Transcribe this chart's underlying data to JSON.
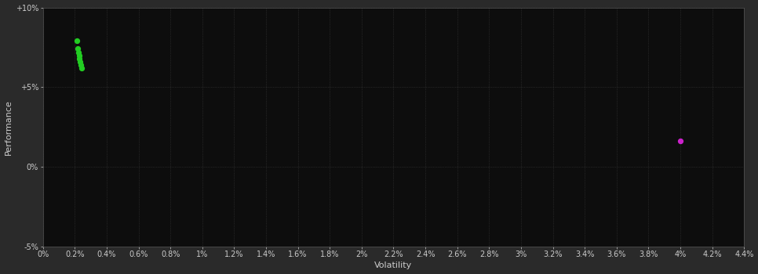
{
  "background_color": "#2a2a2a",
  "plot_bg_color": "#0d0d0d",
  "grid_color": "#3a3a3a",
  "grid_style": ":",
  "x_label": "Volatility",
  "y_label": "Performance",
  "x_min": 0.0,
  "x_max": 0.044,
  "y_min": -0.05,
  "y_max": 0.1,
  "x_ticks": [
    0.0,
    0.002,
    0.004,
    0.006,
    0.008,
    0.01,
    0.012,
    0.014,
    0.016,
    0.018,
    0.02,
    0.022,
    0.024,
    0.026,
    0.028,
    0.03,
    0.032,
    0.034,
    0.036,
    0.038,
    0.04,
    0.042,
    0.044
  ],
  "x_tick_labels": [
    "0%",
    "0.2%",
    "0.4%",
    "0.6%",
    "0.8%",
    "1%",
    "1.2%",
    "1.4%",
    "1.6%",
    "1.8%",
    "2%",
    "2.2%",
    "2.4%",
    "2.6%",
    "2.8%",
    "3%",
    "3.2%",
    "3.4%",
    "3.6%",
    "3.8%",
    "4%",
    "4.2%",
    "4.4%"
  ],
  "y_ticks": [
    -0.05,
    0.0,
    0.05,
    0.1
  ],
  "y_tick_labels": [
    "-5%",
    "0%",
    "+5%",
    "+10%"
  ],
  "green_points": [
    [
      0.00215,
      0.079
    ],
    [
      0.0022,
      0.074
    ],
    [
      0.00225,
      0.072
    ],
    [
      0.00228,
      0.07
    ],
    [
      0.0023,
      0.068
    ],
    [
      0.00235,
      0.066
    ],
    [
      0.00238,
      0.064
    ],
    [
      0.00242,
      0.062
    ]
  ],
  "magenta_points": [
    [
      0.04,
      0.016
    ]
  ],
  "green_color": "#22cc22",
  "magenta_color": "#cc22cc",
  "point_size": 18,
  "font_color": "#cccccc",
  "tick_font_size": 7,
  "label_font_size": 8
}
